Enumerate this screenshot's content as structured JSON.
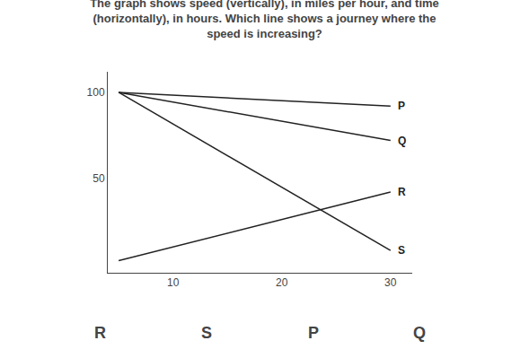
{
  "chart_data": {
    "type": "line",
    "title": "The graph shows speed (vertically), in miles per hour, and time\n(horizontally), in hours. Which line shows a journey where the\nspeed is increasing?",
    "x": [
      5,
      30
    ],
    "series": [
      {
        "name": "P",
        "color": "#222222",
        "values": [
          100,
          92
        ]
      },
      {
        "name": "Q",
        "color": "#222222",
        "values": [
          100,
          72
        ]
      },
      {
        "name": "R",
        "color": "#222222",
        "values": [
          2,
          42
        ]
      },
      {
        "name": "S",
        "color": "#222222",
        "values": [
          100,
          8
        ]
      }
    ],
    "xlim": [
      4,
      32
    ],
    "ylim": [
      -5,
      112
    ],
    "xticks": [
      10,
      20,
      30
    ],
    "yticks": [
      50,
      100
    ],
    "grid": false,
    "annotations": [
      "R",
      "S",
      "P",
      "Q"
    ]
  }
}
